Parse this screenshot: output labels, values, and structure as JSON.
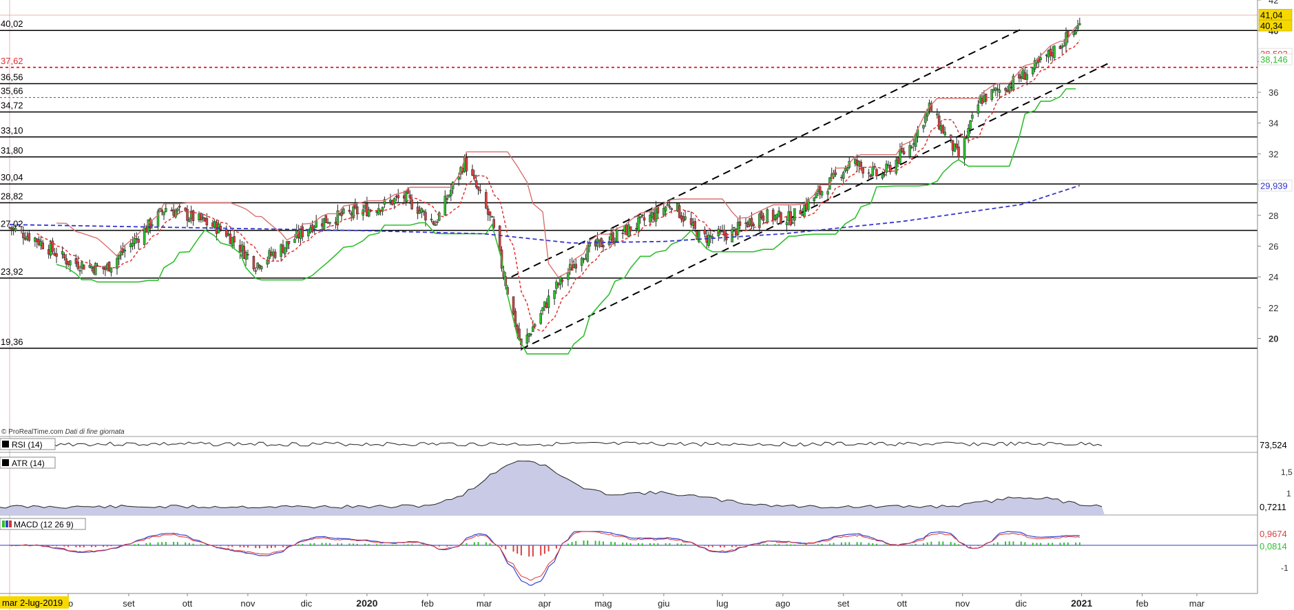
{
  "watermark": {
    "brand": "© ProRealTime.com",
    "note": "Dati di fine giornata"
  },
  "main": {
    "level_labels": [
      "40,02",
      "37,62",
      "36,56",
      "35,66",
      "34,72",
      "33,10",
      "31,80",
      "30,04",
      "28,82",
      "27,02",
      "23,92",
      "19,36"
    ],
    "right_ticks": [
      "42",
      "40",
      "38",
      "36",
      "34",
      "32",
      "30",
      "28",
      "26",
      "24",
      "22",
      "20"
    ],
    "price_badges": [
      {
        "text": "41,04",
        "bg": "#f5d800",
        "fg": "#000000"
      },
      {
        "text": "40,34",
        "bg": "#f5d800",
        "fg": "#000000"
      },
      {
        "text": "38,502",
        "bg": "#ffffff",
        "fg": "#d94040"
      },
      {
        "text": "38,146",
        "bg": "#ffffff",
        "fg": "#2fbf2f"
      },
      {
        "text": "29,939",
        "bg": "#ffffff",
        "fg": "#3333cc"
      }
    ]
  },
  "indicators": {
    "rsi": {
      "label": "RSI (14)",
      "value": "73,524"
    },
    "atr": {
      "label": "ATR (14)",
      "ticks": [
        "1,5",
        "1"
      ],
      "value": "0,7211"
    },
    "macd": {
      "label": "MACD (12 26 9)",
      "ticks": [
        "-1"
      ],
      "value1": "0,9674",
      "value2": "0,0814"
    }
  },
  "x_axis": {
    "start_badge": "mar 2-lug-2019",
    "labels": [
      "go",
      "set",
      "ott",
      "nov",
      "dic",
      "2020",
      "feb",
      "mar",
      "apr",
      "mag",
      "giu",
      "lug",
      "ago",
      "set",
      "ott",
      "nov",
      "dic",
      "2021",
      "feb",
      "mar"
    ]
  },
  "colors": {
    "bull": "#2fbf2f",
    "bear": "#d94040",
    "sma": "#3333cc",
    "ma_short": "#e03030",
    "level": "#000000",
    "atr_fill": "#c8cae6"
  },
  "chart_data": {
    "type": "candlestick",
    "x_range": [
      "2019-07-02",
      "2021-03-31"
    ],
    "ylim": [
      18.5,
      42
    ],
    "horizontal_levels": [
      40.02,
      37.62,
      36.56,
      35.66,
      34.72,
      33.1,
      31.8,
      30.04,
      28.82,
      27.02,
      23.92,
      19.36
    ],
    "trend_channel": {
      "upper": [
        [
          "2020-03-15",
          24.0
        ],
        [
          "2020-12-01",
          40.1
        ]
      ],
      "lower": [
        [
          "2020-03-20",
          19.3
        ],
        [
          "2021-01-15",
          37.9
        ]
      ]
    },
    "close_series": {
      "dates": [
        "2019-07-02",
        "2019-07-15",
        "2019-08-01",
        "2019-08-20",
        "2019-09-05",
        "2019-09-20",
        "2019-10-05",
        "2019-10-20",
        "2019-11-05",
        "2019-11-20",
        "2019-12-05",
        "2019-12-20",
        "2020-01-05",
        "2020-01-20",
        "2020-02-05",
        "2020-02-20",
        "2020-03-05",
        "2020-03-15",
        "2020-03-20",
        "2020-04-05",
        "2020-04-20",
        "2020-05-05",
        "2020-05-20",
        "2020-06-05",
        "2020-06-20",
        "2020-07-05",
        "2020-07-20",
        "2020-08-05",
        "2020-08-20",
        "2020-09-05",
        "2020-09-20",
        "2020-10-05",
        "2020-10-15",
        "2020-10-30",
        "2020-11-10",
        "2020-11-25",
        "2020-12-10",
        "2020-12-31"
      ],
      "values": [
        27.2,
        26.5,
        25.0,
        24.5,
        26.5,
        28.5,
        27.8,
        27.0,
        24.8,
        26.0,
        27.5,
        28.0,
        28.5,
        29.2,
        27.5,
        31.5,
        27.5,
        22.0,
        19.4,
        23.0,
        25.5,
        26.5,
        27.5,
        28.8,
        26.5,
        26.8,
        28.0,
        27.8,
        29.5,
        31.5,
        30.5,
        32.5,
        35.0,
        31.8,
        35.5,
        36.5,
        37.8,
        40.34
      ]
    },
    "sma_series": {
      "dates": [
        "2019-07-02",
        "2019-10-01",
        "2020-01-01",
        "2020-03-01",
        "2020-04-15",
        "2020-06-01",
        "2020-08-01",
        "2020-10-01",
        "2020-12-01",
        "2020-12-31"
      ],
      "values": [
        27.4,
        27.2,
        27.0,
        26.8,
        26.2,
        26.3,
        26.8,
        27.6,
        28.7,
        29.939
      ]
    },
    "last_values": {
      "price": 40.34,
      "high": 41.04,
      "ma_short": 38.502,
      "ma_long": 38.146,
      "sma": 29.939,
      "rsi": 73.524,
      "atr": 0.7211,
      "macd": 0.9674,
      "macd_hist": 0.0814
    }
  }
}
